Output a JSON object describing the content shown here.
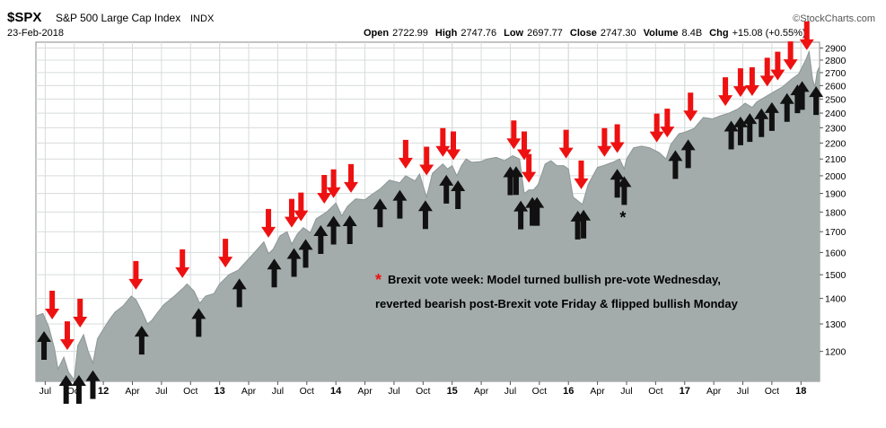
{
  "header": {
    "symbol": "$SPX",
    "name": "S&P 500 Large Cap Index",
    "exchange": "INDX",
    "date": "23-Feb-2018",
    "brand": "©StockCharts.com",
    "stats": [
      {
        "label": "Open",
        "value": "2722.99"
      },
      {
        "label": "High",
        "value": "2747.76"
      },
      {
        "label": "Low",
        "value": "2697.77"
      },
      {
        "label": "Close",
        "value": "2747.30"
      },
      {
        "label": "Volume",
        "value": "8.4B"
      },
      {
        "label": "Chg",
        "value": "+15.08 (+0.55%)"
      }
    ]
  },
  "annotation": {
    "star": "*",
    "line1": "Brexit vote week: Model turned bullish pre-vote Wednesday,",
    "line2": "reverted bearish post-Brexit vote Friday & flipped bullish Monday"
  },
  "colors": {
    "area": "#a3acab",
    "area_line": "#8c9796",
    "sell_arrow": "#ee1111",
    "buy_arrow": "#111111",
    "star": "#ee1111",
    "grid": "#d8dcdc",
    "plot_bg": "#ffffff"
  },
  "chart_data": {
    "type": "area",
    "ylim": [
      1100,
      2950
    ],
    "y_scale": "log",
    "y_ticks": [
      1200,
      1300,
      1400,
      1500,
      1600,
      1700,
      1800,
      1900,
      2000,
      2100,
      2200,
      2300,
      2400,
      2500,
      2600,
      2700,
      2800,
      2900
    ],
    "x_ticks": [
      {
        "label": "Jul",
        "t": 2011.5,
        "year": false
      },
      {
        "label": "Oct",
        "t": 2011.75,
        "year": false
      },
      {
        "label": "12",
        "t": 2012.0,
        "year": true
      },
      {
        "label": "Apr",
        "t": 2012.25,
        "year": false
      },
      {
        "label": "Jul",
        "t": 2012.5,
        "year": false
      },
      {
        "label": "Oct",
        "t": 2012.75,
        "year": false
      },
      {
        "label": "13",
        "t": 2013.0,
        "year": true
      },
      {
        "label": "Apr",
        "t": 2013.25,
        "year": false
      },
      {
        "label": "Jul",
        "t": 2013.5,
        "year": false
      },
      {
        "label": "Oct",
        "t": 2013.75,
        "year": false
      },
      {
        "label": "14",
        "t": 2014.0,
        "year": true
      },
      {
        "label": "Apr",
        "t": 2014.25,
        "year": false
      },
      {
        "label": "Jul",
        "t": 2014.5,
        "year": false
      },
      {
        "label": "Oct",
        "t": 2014.75,
        "year": false
      },
      {
        "label": "15",
        "t": 2015.0,
        "year": true
      },
      {
        "label": "Apr",
        "t": 2015.25,
        "year": false
      },
      {
        "label": "Jul",
        "t": 2015.5,
        "year": false
      },
      {
        "label": "Oct",
        "t": 2015.75,
        "year": false
      },
      {
        "label": "16",
        "t": 2016.0,
        "year": true
      },
      {
        "label": "Apr",
        "t": 2016.25,
        "year": false
      },
      {
        "label": "Jul",
        "t": 2016.5,
        "year": false
      },
      {
        "label": "Oct",
        "t": 2016.75,
        "year": false
      },
      {
        "label": "17",
        "t": 2017.0,
        "year": true
      },
      {
        "label": "Apr",
        "t": 2017.25,
        "year": false
      },
      {
        "label": "Jul",
        "t": 2017.5,
        "year": false
      },
      {
        "label": "Oct",
        "t": 2017.75,
        "year": false
      },
      {
        "label": "18",
        "t": 2018.0,
        "year": true
      }
    ],
    "x_range": [
      2011.42,
      2018.16
    ],
    "series": [
      {
        "points": [
          [
            2011.42,
            1330
          ],
          [
            2011.48,
            1340
          ],
          [
            2011.53,
            1290
          ],
          [
            2011.58,
            1210
          ],
          [
            2011.61,
            1140
          ],
          [
            2011.66,
            1180
          ],
          [
            2011.7,
            1130
          ],
          [
            2011.75,
            1105
          ],
          [
            2011.78,
            1220
          ],
          [
            2011.83,
            1260
          ],
          [
            2011.87,
            1200
          ],
          [
            2011.91,
            1160
          ],
          [
            2011.95,
            1245
          ],
          [
            2012.0,
            1280
          ],
          [
            2012.05,
            1315
          ],
          [
            2012.1,
            1345
          ],
          [
            2012.17,
            1370
          ],
          [
            2012.24,
            1410
          ],
          [
            2012.28,
            1395
          ],
          [
            2012.33,
            1350
          ],
          [
            2012.38,
            1300
          ],
          [
            2012.42,
            1315
          ],
          [
            2012.46,
            1340
          ],
          [
            2012.52,
            1375
          ],
          [
            2012.6,
            1405
          ],
          [
            2012.68,
            1440
          ],
          [
            2012.72,
            1460
          ],
          [
            2012.78,
            1430
          ],
          [
            2012.83,
            1380
          ],
          [
            2012.88,
            1410
          ],
          [
            2012.95,
            1420
          ],
          [
            2013.0,
            1460
          ],
          [
            2013.08,
            1500
          ],
          [
            2013.16,
            1520
          ],
          [
            2013.24,
            1565
          ],
          [
            2013.3,
            1600
          ],
          [
            2013.38,
            1650
          ],
          [
            2013.42,
            1595
          ],
          [
            2013.46,
            1615
          ],
          [
            2013.52,
            1680
          ],
          [
            2013.58,
            1700
          ],
          [
            2013.62,
            1640
          ],
          [
            2013.67,
            1690
          ],
          [
            2013.72,
            1720
          ],
          [
            2013.78,
            1695
          ],
          [
            2013.83,
            1765
          ],
          [
            2013.92,
            1800
          ],
          [
            2014.0,
            1848
          ],
          [
            2014.05,
            1780
          ],
          [
            2014.1,
            1830
          ],
          [
            2014.17,
            1870
          ],
          [
            2014.25,
            1865
          ],
          [
            2014.3,
            1890
          ],
          [
            2014.38,
            1925
          ],
          [
            2014.46,
            1975
          ],
          [
            2014.55,
            1960
          ],
          [
            2014.6,
            2000
          ],
          [
            2014.68,
            1970
          ],
          [
            2014.72,
            2010
          ],
          [
            2014.78,
            1880
          ],
          [
            2014.83,
            2015
          ],
          [
            2014.92,
            2070
          ],
          [
            2014.96,
            2040
          ],
          [
            2015.0,
            2060
          ],
          [
            2015.04,
            2000
          ],
          [
            2015.08,
            2060
          ],
          [
            2015.12,
            2100
          ],
          [
            2015.17,
            2080
          ],
          [
            2015.25,
            2085
          ],
          [
            2015.3,
            2100
          ],
          [
            2015.38,
            2110
          ],
          [
            2015.45,
            2090
          ],
          [
            2015.52,
            2120
          ],
          [
            2015.58,
            2100
          ],
          [
            2015.62,
            1900
          ],
          [
            2015.66,
            1920
          ],
          [
            2015.7,
            1920
          ],
          [
            2015.74,
            1950
          ],
          [
            2015.8,
            2070
          ],
          [
            2015.85,
            2090
          ],
          [
            2015.9,
            2060
          ],
          [
            2015.96,
            2060
          ],
          [
            2016.0,
            2040
          ],
          [
            2016.04,
            1880
          ],
          [
            2016.08,
            1860
          ],
          [
            2016.12,
            1840
          ],
          [
            2016.17,
            1950
          ],
          [
            2016.25,
            2050
          ],
          [
            2016.3,
            2060
          ],
          [
            2016.38,
            2080
          ],
          [
            2016.44,
            2100
          ],
          [
            2016.48,
            2040
          ],
          [
            2016.5,
            2100
          ],
          [
            2016.56,
            2170
          ],
          [
            2016.63,
            2180
          ],
          [
            2016.7,
            2170
          ],
          [
            2016.78,
            2140
          ],
          [
            2016.84,
            2100
          ],
          [
            2016.88,
            2190
          ],
          [
            2016.95,
            2260
          ],
          [
            2017.0,
            2270
          ],
          [
            2017.08,
            2295
          ],
          [
            2017.16,
            2370
          ],
          [
            2017.24,
            2360
          ],
          [
            2017.3,
            2380
          ],
          [
            2017.38,
            2400
          ],
          [
            2017.46,
            2430
          ],
          [
            2017.52,
            2470
          ],
          [
            2017.58,
            2440
          ],
          [
            2017.62,
            2480
          ],
          [
            2017.7,
            2520
          ],
          [
            2017.78,
            2560
          ],
          [
            2017.84,
            2590
          ],
          [
            2017.92,
            2650
          ],
          [
            2017.98,
            2690
          ],
          [
            2018.04,
            2800
          ],
          [
            2018.07,
            2870
          ],
          [
            2018.1,
            2650
          ],
          [
            2018.12,
            2590
          ],
          [
            2018.14,
            2710
          ],
          [
            2018.16,
            2747
          ]
        ]
      }
    ],
    "sell_signals": [
      2011.56,
      2011.69,
      2011.8,
      2012.28,
      2012.68,
      2013.05,
      2013.42,
      2013.62,
      2013.7,
      2013.9,
      2013.98,
      2014.13,
      2014.6,
      2014.78,
      2014.92,
      2015.01,
      2015.53,
      2015.62,
      2015.66,
      2015.98,
      2016.11,
      2016.31,
      2016.42,
      2016.76,
      2016.85,
      2017.05,
      2017.35,
      2017.48,
      2017.58,
      2017.71,
      2017.8,
      2017.91,
      2018.05
    ],
    "buy_signals": [
      2011.49,
      2011.68,
      2011.79,
      2011.91,
      2012.33,
      2012.82,
      2013.17,
      2013.47,
      2013.64,
      2013.74,
      2013.87,
      2013.98,
      2014.12,
      2014.38,
      2014.55,
      2014.77,
      2014.95,
      2015.05,
      2015.5,
      2015.55,
      2015.59,
      2015.69,
      2015.73,
      2016.08,
      2016.13,
      2016.42,
      2016.48,
      2016.92,
      2017.03,
      2017.4,
      2017.48,
      2017.56,
      2017.66,
      2017.75,
      2017.88,
      2017.97,
      2018.01,
      2018.13
    ],
    "star_signal": {
      "t": 2016.48,
      "price": 1780
    }
  }
}
